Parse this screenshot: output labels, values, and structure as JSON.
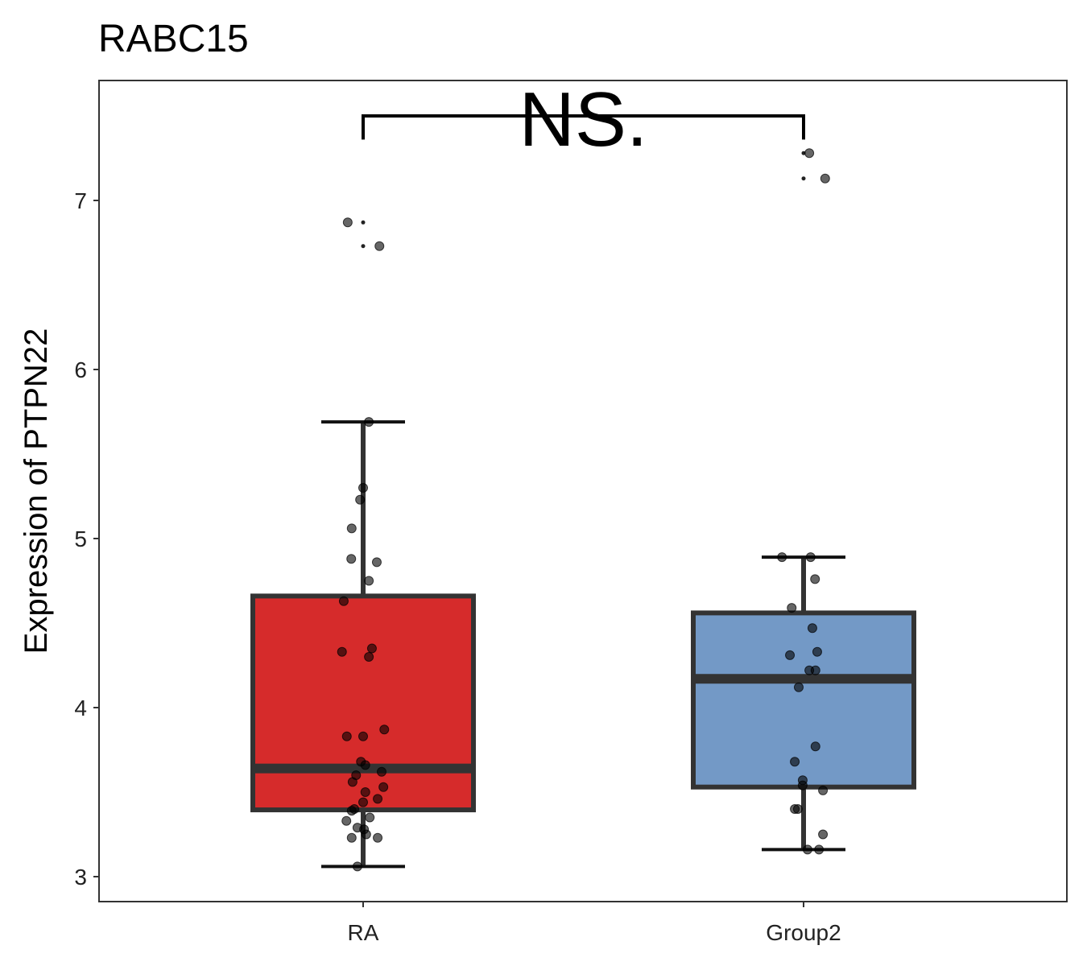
{
  "chart_data": {
    "type": "box",
    "title": "RABC15",
    "xlabel": "",
    "ylabel": "Expression of PTPN22",
    "ylim": [
      2.85,
      7.71
    ],
    "yticks": [
      3,
      4,
      5,
      6,
      7
    ],
    "categories": [
      "RA",
      "Group2"
    ],
    "grid": false,
    "significance": {
      "label": "NS.",
      "from": "RA",
      "to": "Group2",
      "y": 7.5,
      "tip_y": 7.36
    },
    "series": [
      {
        "name": "RA",
        "color": "#d62b2b",
        "q1": 3.395,
        "median": 3.64,
        "q3": 4.66,
        "whisker_low": 3.06,
        "whisker_high": 5.69,
        "outliers": [
          6.87,
          6.73
        ],
        "points": [
          [
            6.87,
            -0.035
          ],
          [
            6.73,
            0.037
          ],
          [
            5.69,
            0.013
          ],
          [
            5.3,
            0
          ],
          [
            5.23,
            -0.007
          ],
          [
            5.06,
            -0.026
          ],
          [
            4.88,
            -0.027
          ],
          [
            4.86,
            0.031
          ],
          [
            4.75,
            0.013
          ],
          [
            4.63,
            -0.044
          ],
          [
            4.33,
            -0.048
          ],
          [
            4.35,
            0.02
          ],
          [
            4.3,
            0.013
          ],
          [
            3.83,
            -0.037
          ],
          [
            3.83,
            0
          ],
          [
            3.87,
            0.048
          ],
          [
            3.68,
            -0.005
          ],
          [
            3.66,
            0.005
          ],
          [
            3.62,
            0.042
          ],
          [
            3.6,
            -0.016
          ],
          [
            3.56,
            -0.024
          ],
          [
            3.5,
            0.005
          ],
          [
            3.53,
            0.046
          ],
          [
            3.46,
            0.033
          ],
          [
            3.44,
            0
          ],
          [
            3.4,
            -0.02
          ],
          [
            3.39,
            -0.026
          ],
          [
            3.33,
            -0.038
          ],
          [
            3.35,
            0.015
          ],
          [
            3.29,
            -0.013
          ],
          [
            3.28,
            0.002
          ],
          [
            3.25,
            0.007
          ],
          [
            3.23,
            -0.026
          ],
          [
            3.23,
            0.033
          ],
          [
            3.06,
            -0.013
          ]
        ]
      },
      {
        "name": "Group2",
        "color": "#7399c6",
        "q1": 3.53,
        "median": 4.17,
        "q3": 4.56,
        "whisker_low": 3.16,
        "whisker_high": 4.89,
        "outliers": [
          7.28,
          7.13
        ],
        "points": [
          [
            7.28,
            0.013
          ],
          [
            7.13,
            0.049
          ],
          [
            4.89,
            -0.049
          ],
          [
            4.89,
            0.016
          ],
          [
            4.76,
            0.026
          ],
          [
            4.59,
            -0.027
          ],
          [
            4.47,
            0.02
          ],
          [
            4.31,
            -0.031
          ],
          [
            4.33,
            0.031
          ],
          [
            4.22,
            0.013
          ],
          [
            4.22,
            0.027
          ],
          [
            4.12,
            -0.011
          ],
          [
            3.77,
            0.027
          ],
          [
            3.68,
            -0.02
          ],
          [
            3.57,
            -0.002
          ],
          [
            3.54,
            -0.002
          ],
          [
            3.51,
            0.044
          ],
          [
            3.4,
            -0.013
          ],
          [
            3.4,
            -0.02
          ],
          [
            3.25,
            0.044
          ],
          [
            3.16,
            0.009
          ],
          [
            3.16,
            0.035
          ]
        ]
      }
    ]
  }
}
